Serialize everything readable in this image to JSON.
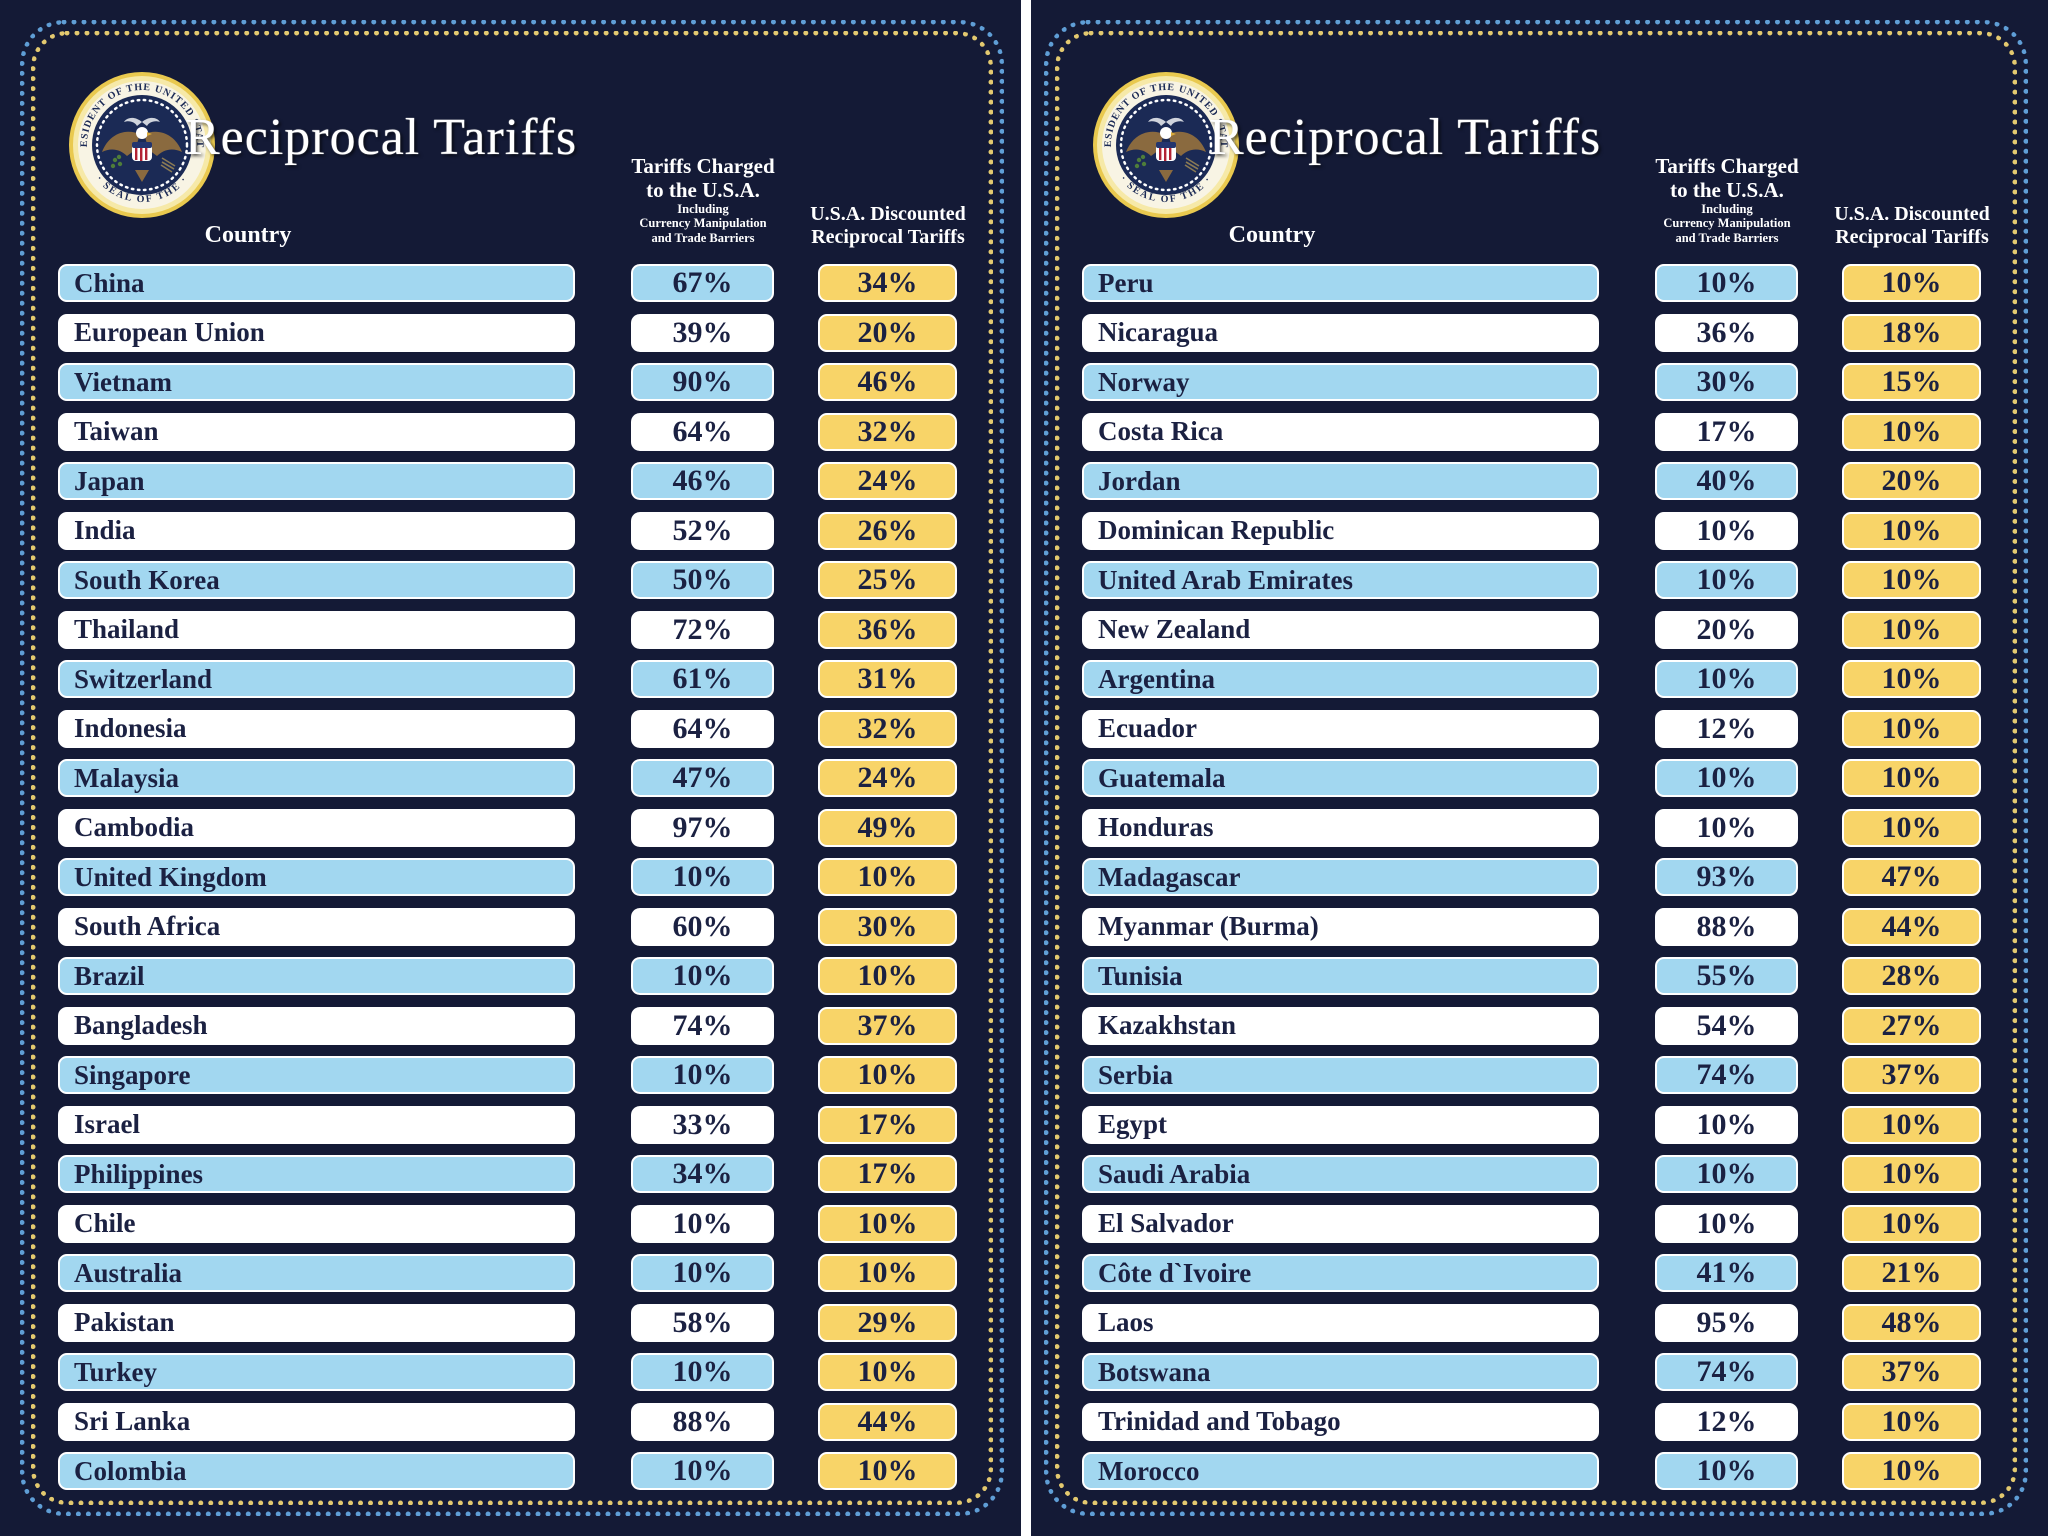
{
  "title": "Reciprocal Tariffs",
  "header": {
    "country_col": "Country",
    "charged_line1": "Tariffs Charged",
    "charged_line2": "to the U.S.A.",
    "charged_sub1": "Including",
    "charged_sub2": "Currency Manipulation",
    "charged_sub3": "and Trade Barriers",
    "discounted_line1": "U.S.A. Discounted",
    "discounted_line2": "Reciprocal Tariffs"
  },
  "seal": {
    "icon": "presidential-seal-icon",
    "text_top": "PRESIDENT OF THE UNITED STATES",
    "text_bottom": "· SEAL OF THE ·"
  },
  "colors": {
    "background": "#141a36",
    "bar_blue": "#a2d7f0",
    "bar_white": "#ffffff",
    "bar_gold": "#f8d468",
    "text_navy": "#1b2142",
    "dots_outer_blue": "#5f9ed6",
    "dots_inner_gold": "#e3c96f",
    "seal_gold": "#e9c94f"
  },
  "chart_data": {
    "type": "table",
    "title": "Reciprocal Tariffs",
    "columns": [
      "Country",
      "Tariffs Charged to the U.S.A. Including Currency Manipulation and Trade Barriers",
      "U.S.A. Discounted Reciprocal Tariffs"
    ],
    "panels": [
      {
        "rows": [
          {
            "country": "China",
            "charged": "67%",
            "discounted": "34%"
          },
          {
            "country": "European Union",
            "charged": "39%",
            "discounted": "20%"
          },
          {
            "country": "Vietnam",
            "charged": "90%",
            "discounted": "46%"
          },
          {
            "country": "Taiwan",
            "charged": "64%",
            "discounted": "32%"
          },
          {
            "country": "Japan",
            "charged": "46%",
            "discounted": "24%"
          },
          {
            "country": "India",
            "charged": "52%",
            "discounted": "26%"
          },
          {
            "country": "South Korea",
            "charged": "50%",
            "discounted": "25%"
          },
          {
            "country": "Thailand",
            "charged": "72%",
            "discounted": "36%"
          },
          {
            "country": "Switzerland",
            "charged": "61%",
            "discounted": "31%"
          },
          {
            "country": "Indonesia",
            "charged": "64%",
            "discounted": "32%"
          },
          {
            "country": "Malaysia",
            "charged": "47%",
            "discounted": "24%"
          },
          {
            "country": "Cambodia",
            "charged": "97%",
            "discounted": "49%"
          },
          {
            "country": "United Kingdom",
            "charged": "10%",
            "discounted": "10%"
          },
          {
            "country": "South Africa",
            "charged": "60%",
            "discounted": "30%"
          },
          {
            "country": "Brazil",
            "charged": "10%",
            "discounted": "10%"
          },
          {
            "country": "Bangladesh",
            "charged": "74%",
            "discounted": "37%"
          },
          {
            "country": "Singapore",
            "charged": "10%",
            "discounted": "10%"
          },
          {
            "country": "Israel",
            "charged": "33%",
            "discounted": "17%"
          },
          {
            "country": "Philippines",
            "charged": "34%",
            "discounted": "17%"
          },
          {
            "country": "Chile",
            "charged": "10%",
            "discounted": "10%"
          },
          {
            "country": "Australia",
            "charged": "10%",
            "discounted": "10%"
          },
          {
            "country": "Pakistan",
            "charged": "58%",
            "discounted": "29%"
          },
          {
            "country": "Turkey",
            "charged": "10%",
            "discounted": "10%"
          },
          {
            "country": "Sri Lanka",
            "charged": "88%",
            "discounted": "44%"
          },
          {
            "country": "Colombia",
            "charged": "10%",
            "discounted": "10%"
          }
        ]
      },
      {
        "rows": [
          {
            "country": "Peru",
            "charged": "10%",
            "discounted": "10%"
          },
          {
            "country": "Nicaragua",
            "charged": "36%",
            "discounted": "18%"
          },
          {
            "country": "Norway",
            "charged": "30%",
            "discounted": "15%"
          },
          {
            "country": "Costa Rica",
            "charged": "17%",
            "discounted": "10%"
          },
          {
            "country": "Jordan",
            "charged": "40%",
            "discounted": "20%"
          },
          {
            "country": "Dominican Republic",
            "charged": "10%",
            "discounted": "10%"
          },
          {
            "country": "United Arab Emirates",
            "charged": "10%",
            "discounted": "10%"
          },
          {
            "country": "New Zealand",
            "charged": "20%",
            "discounted": "10%"
          },
          {
            "country": "Argentina",
            "charged": "10%",
            "discounted": "10%"
          },
          {
            "country": "Ecuador",
            "charged": "12%",
            "discounted": "10%"
          },
          {
            "country": "Guatemala",
            "charged": "10%",
            "discounted": "10%"
          },
          {
            "country": "Honduras",
            "charged": "10%",
            "discounted": "10%"
          },
          {
            "country": "Madagascar",
            "charged": "93%",
            "discounted": "47%"
          },
          {
            "country": "Myanmar (Burma)",
            "charged": "88%",
            "discounted": "44%"
          },
          {
            "country": "Tunisia",
            "charged": "55%",
            "discounted": "28%"
          },
          {
            "country": "Kazakhstan",
            "charged": "54%",
            "discounted": "27%"
          },
          {
            "country": "Serbia",
            "charged": "74%",
            "discounted": "37%"
          },
          {
            "country": "Egypt",
            "charged": "10%",
            "discounted": "10%"
          },
          {
            "country": "Saudi Arabia",
            "charged": "10%",
            "discounted": "10%"
          },
          {
            "country": "El Salvador",
            "charged": "10%",
            "discounted": "10%"
          },
          {
            "country": "Côte d`Ivoire",
            "charged": "41%",
            "discounted": "21%"
          },
          {
            "country": "Laos",
            "charged": "95%",
            "discounted": "48%"
          },
          {
            "country": "Botswana",
            "charged": "74%",
            "discounted": "37%"
          },
          {
            "country": "Trinidad and Tobago",
            "charged": "12%",
            "discounted": "10%"
          },
          {
            "country": "Morocco",
            "charged": "10%",
            "discounted": "10%"
          }
        ]
      }
    ]
  }
}
